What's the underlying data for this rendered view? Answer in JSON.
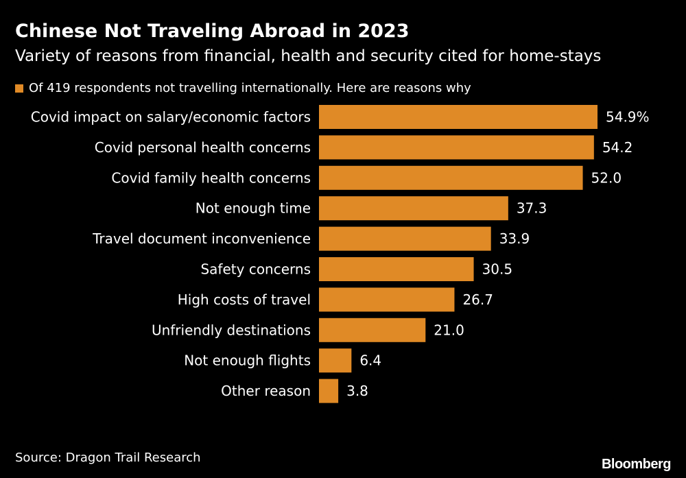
{
  "header": {
    "title": "Chinese Not Traveling Abroad in 2023",
    "subtitle": "Variety of reasons from financial, health and security cited for home-stays"
  },
  "footer": {
    "source": "Source: Dragon Trail Research",
    "brand": "Bloomberg"
  },
  "colors": {
    "background": "#000000",
    "bar": "#e08a26",
    "text": "#ffffff"
  },
  "chart_data": {
    "type": "bar",
    "orientation": "horizontal",
    "legend": "Of 419 respondents not travelling internationally. Here are reasons why",
    "legend_position": "top-left",
    "categories": [
      "Covid impact on salary/economic factors",
      "Covid personal health concerns",
      "Covid family health concerns",
      "Not enough time",
      "Travel document inconvenience",
      "Safety concerns",
      "High costs of travel",
      "Unfriendly destinations",
      "Not enough flights",
      "Other reason"
    ],
    "values": [
      54.9,
      54.2,
      52.0,
      37.3,
      33.9,
      30.5,
      26.7,
      21.0,
      6.4,
      3.8
    ],
    "value_labels": [
      "54.9%",
      "54.2",
      "52.0",
      "37.3",
      "33.9",
      "30.5",
      "26.7",
      "21.0",
      "6.4",
      "3.8"
    ],
    "unit": "%",
    "xlim": [
      0,
      54.9
    ],
    "grid": false
  }
}
